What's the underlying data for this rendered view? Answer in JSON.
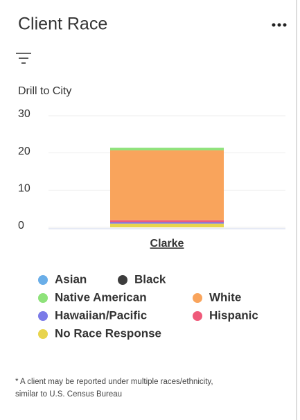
{
  "title": "Client Race",
  "filter_label": "Drill to City",
  "footnote": "* A client may be reported under multiple races/ethnicity, similar to U.S. Census Bureau",
  "chart_data": {
    "type": "stacked_bar",
    "categories": [
      "Clarke"
    ],
    "series": [
      {
        "name": "No Race Response",
        "color": "#e8d44d",
        "values": [
          1
        ]
      },
      {
        "name": "Hawaiian/Pacific",
        "color": "#7b7be8",
        "values": [
          0.4
        ]
      },
      {
        "name": "Hispanic",
        "color": "#ef5a7a",
        "values": [
          0.5
        ]
      },
      {
        "name": "White",
        "color": "#f9a45c",
        "values": [
          18.8
        ]
      },
      {
        "name": "Native American",
        "color": "#8ee27a",
        "values": [
          0.7
        ]
      },
      {
        "name": "Black",
        "color": "#3d3d3d",
        "values": [
          0
        ]
      },
      {
        "name": "Asian",
        "color": "#6aaee8",
        "values": [
          0
        ]
      }
    ],
    "ylim": [
      0,
      30
    ],
    "yticks": [
      0,
      10,
      20,
      30
    ],
    "grid": true
  }
}
